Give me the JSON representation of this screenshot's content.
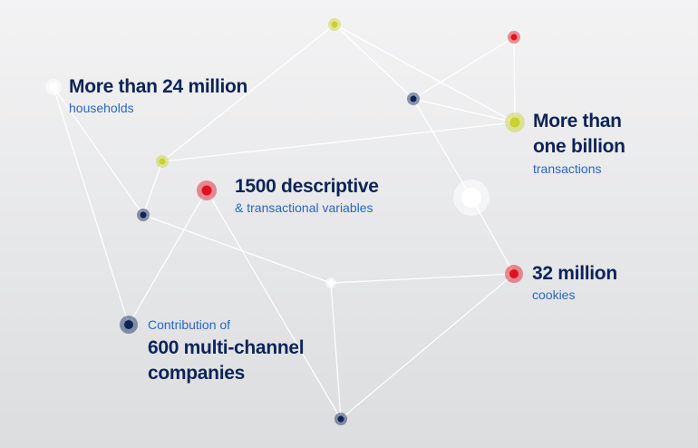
{
  "colors": {
    "navy": "#0c2458",
    "blue": "#2a67c5",
    "red": "#e3101f",
    "yellow": "#c8d22c",
    "white": "#ffffff",
    "edge": "#ffffff"
  },
  "labels": {
    "households": {
      "title": "More than 24 million",
      "sub": "households"
    },
    "transactions": {
      "title_line1": "More than",
      "title_line2": "one billion",
      "sub": "transactions"
    },
    "variables": {
      "title": "1500 descriptive",
      "sub": "& transactional variables"
    },
    "cookies": {
      "title": "32 million",
      "sub": "cookies"
    },
    "companies": {
      "pre": "Contribution of",
      "title_line1": "600 multi-channel",
      "title_line2": "companies"
    }
  }
}
